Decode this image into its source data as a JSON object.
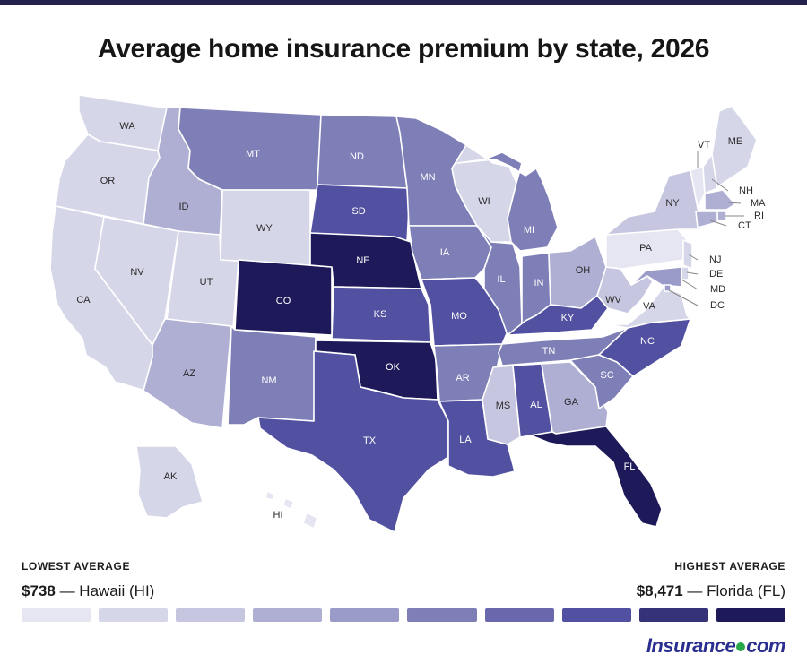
{
  "title": "Average home insurance premium by state, 2026",
  "colors": {
    "scale": [
      "#e6e6f2",
      "#d6d6e9",
      "#c6c6e0",
      "#afafd4",
      "#9b9bca",
      "#7f7fb8",
      "#6a68ad",
      "#5250a0",
      "#35327a",
      "#1e1a5a"
    ],
    "borders": "#ffffff",
    "leader": "#888888",
    "top_bar": "#24214f",
    "brand": "#2a2e8f",
    "brand_dot": "#26a84a"
  },
  "states": [
    {
      "abbr": "WA",
      "level": 1
    },
    {
      "abbr": "OR",
      "level": 1
    },
    {
      "abbr": "CA",
      "level": 1
    },
    {
      "abbr": "NV",
      "level": 1
    },
    {
      "abbr": "ID",
      "level": 3
    },
    {
      "abbr": "UT",
      "level": 1
    },
    {
      "abbr": "AZ",
      "level": 3
    },
    {
      "abbr": "MT",
      "level": 5
    },
    {
      "abbr": "WY",
      "level": 1
    },
    {
      "abbr": "CO",
      "level": 9
    },
    {
      "abbr": "NM",
      "level": 5
    },
    {
      "abbr": "ND",
      "level": 5
    },
    {
      "abbr": "SD",
      "level": 7
    },
    {
      "abbr": "NE",
      "level": 9
    },
    {
      "abbr": "KS",
      "level": 7
    },
    {
      "abbr": "OK",
      "level": 9
    },
    {
      "abbr": "TX",
      "level": 7
    },
    {
      "abbr": "MN",
      "level": 5
    },
    {
      "abbr": "IA",
      "level": 5
    },
    {
      "abbr": "MO",
      "level": 7
    },
    {
      "abbr": "AR",
      "level": 5
    },
    {
      "abbr": "LA",
      "level": 7
    },
    {
      "abbr": "WI",
      "level": 1
    },
    {
      "abbr": "IL",
      "level": 5
    },
    {
      "abbr": "MI",
      "level": 5
    },
    {
      "abbr": "IN",
      "level": 5
    },
    {
      "abbr": "OH",
      "level": 3
    },
    {
      "abbr": "KY",
      "level": 7
    },
    {
      "abbr": "TN",
      "level": 5
    },
    {
      "abbr": "MS",
      "level": 2
    },
    {
      "abbr": "AL",
      "level": 7
    },
    {
      "abbr": "GA",
      "level": 3
    },
    {
      "abbr": "FL",
      "level": 9
    },
    {
      "abbr": "SC",
      "level": 5
    },
    {
      "abbr": "NC",
      "level": 7
    },
    {
      "abbr": "VA",
      "level": 1
    },
    {
      "abbr": "WV",
      "level": 2
    },
    {
      "abbr": "PA",
      "level": 0
    },
    {
      "abbr": "NY",
      "level": 2
    },
    {
      "abbr": "VT",
      "level": 0
    },
    {
      "abbr": "NH",
      "level": 1
    },
    {
      "abbr": "ME",
      "level": 1
    },
    {
      "abbr": "MA",
      "level": 3
    },
    {
      "abbr": "RI",
      "level": 3
    },
    {
      "abbr": "CT",
      "level": 3
    },
    {
      "abbr": "NJ",
      "level": 1
    },
    {
      "abbr": "DE",
      "level": 1
    },
    {
      "abbr": "MD",
      "level": 4
    },
    {
      "abbr": "DC",
      "level": 4
    },
    {
      "abbr": "AK",
      "level": 1
    },
    {
      "abbr": "HI",
      "level": 0
    }
  ],
  "legend": {
    "low_label": "LOWEST AVERAGE",
    "low_value": "$738",
    "low_state": "— Hawaii (HI)",
    "high_label": "HIGHEST AVERAGE",
    "high_value": "$8,471",
    "high_state": "— Florida (FL)",
    "steps": 10
  },
  "brand": {
    "left": "Insurance",
    "right": "com"
  }
}
